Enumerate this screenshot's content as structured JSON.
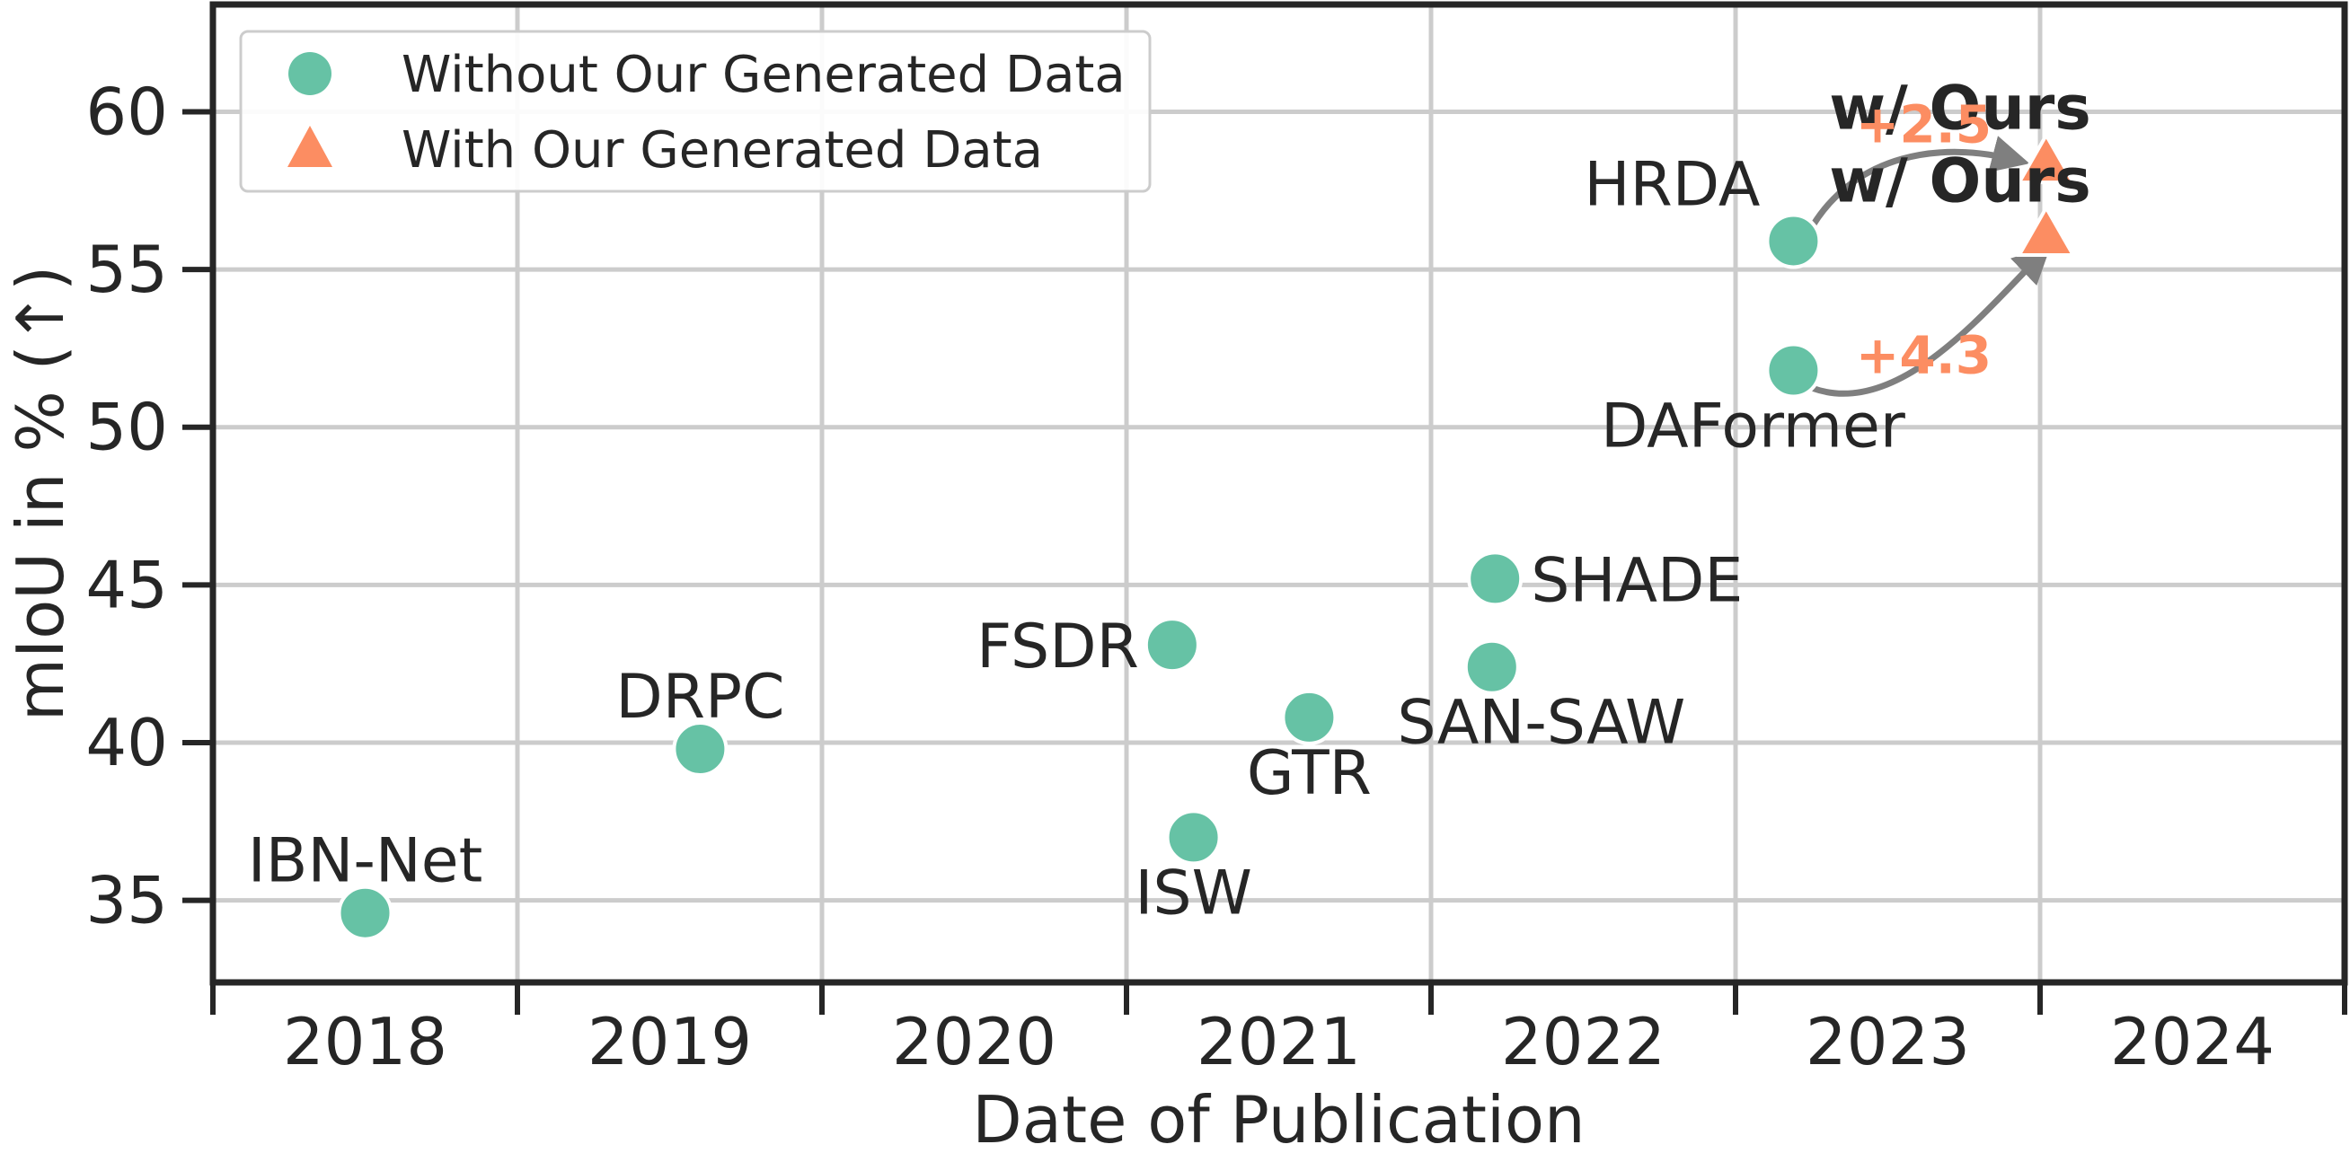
{
  "chart_data": {
    "type": "scatter",
    "xlabel": "Date of Publication",
    "ylabel": "mIoU in % (↑)",
    "xlim": [
      2017.55,
      2024.55
    ],
    "ylim": [
      32.4,
      63.4
    ],
    "yticks": [
      35,
      40,
      45,
      50,
      55,
      60
    ],
    "xcategories": [
      "2018",
      "2019",
      "2020",
      "2021",
      "2022",
      "2023",
      "2024"
    ],
    "grid": true,
    "legend": {
      "placement": "upper-left",
      "entries": [
        {
          "label": "Without Our Generated Data",
          "marker": "circle",
          "color": "#66c2a5"
        },
        {
          "label": "With Our Generated Data",
          "marker": "triangle",
          "color": "#fc8d62"
        }
      ]
    },
    "series": [
      {
        "name": "Without Our Generated Data",
        "marker": "circle",
        "color": "#66c2a5",
        "points": [
          {
            "label": "IBN-Net",
            "x": 2018.05,
            "y": 34.6
          },
          {
            "label": "DRPC",
            "x": 2019.15,
            "y": 39.8
          },
          {
            "label": "FSDR",
            "x": 2020.7,
            "y": 43.1
          },
          {
            "label": "ISW",
            "x": 2020.77,
            "y": 37.0
          },
          {
            "label": "GTR",
            "x": 2021.15,
            "y": 40.8
          },
          {
            "label": "SAN-SAW",
            "x": 2021.75,
            "y": 42.4
          },
          {
            "label": "SHADE",
            "x": 2021.76,
            "y": 45.2
          },
          {
            "label": "HRDA",
            "x": 2022.74,
            "y": 55.9
          },
          {
            "label": "DAFormer",
            "x": 2022.74,
            "y": 51.8
          }
        ]
      },
      {
        "name": "With Our Generated Data",
        "marker": "triangle",
        "color": "#fc8d62",
        "points": [
          {
            "label": "w/ Ours",
            "x": 2023.57,
            "y": 58.4
          },
          {
            "label": "w/ Ours",
            "x": 2023.57,
            "y": 56.1
          }
        ]
      }
    ],
    "annotations": [
      {
        "text": "+2.5",
        "from": "HRDA",
        "color": "#fc8d62"
      },
      {
        "text": "+4.3",
        "from": "DAFormer",
        "color": "#fc8d62"
      }
    ]
  }
}
